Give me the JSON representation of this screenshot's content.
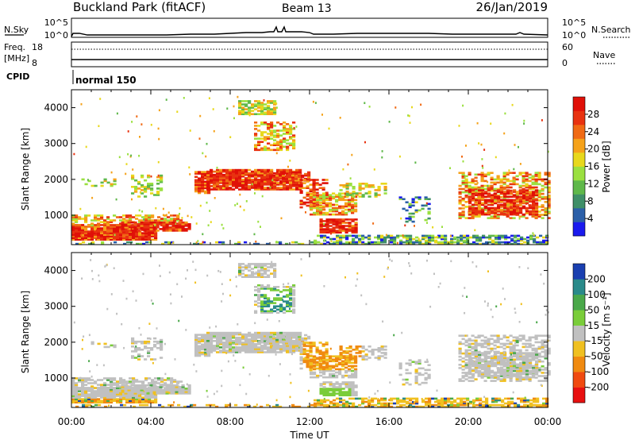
{
  "header": {
    "station": "Buckland Park (fitACF)",
    "beam": "Beam 13",
    "date": "26/Jan/2019"
  },
  "top_panels": {
    "left_label_1": "N.Sky",
    "left_label_2": "Freq.",
    "left_label_3": "[MHz]",
    "left_label_4": "CPID",
    "right_label_1": "N.Search",
    "right_label_2": "Nave",
    "noise_ticks": [
      "10^5",
      "10^0"
    ],
    "freq_ticks": [
      "18",
      "8"
    ],
    "nave_ticks": [
      "60",
      "0"
    ],
    "cpid_text": "normal 150"
  },
  "chart_data": [
    {
      "type": "heatmap",
      "title": "",
      "xlabel": "",
      "ylabel": "Slant Range [km]",
      "ylim": [
        180,
        4500
      ],
      "xlim": [
        0,
        24
      ],
      "y_ticks": [
        "1000",
        "2000",
        "3000",
        "4000"
      ],
      "colorbar": {
        "label": "Power [dB]",
        "range": [
          0,
          32
        ],
        "ticks": [
          "4",
          "8",
          "12",
          "16",
          "20",
          "24",
          "28"
        ],
        "colors": [
          "#1a1aee",
          "#2b5fa8",
          "#3f8f68",
          "#5fb84a",
          "#9be040",
          "#e8d81c",
          "#f5a21a",
          "#f06a14",
          "#e83210",
          "#e01008"
        ]
      }
    },
    {
      "type": "heatmap",
      "title": "",
      "xlabel": "Time UT",
      "ylabel": "Slant Range [km]",
      "ylim": [
        180,
        4500
      ],
      "xlim": [
        0,
        24
      ],
      "y_ticks": [
        "1000",
        "2000",
        "3000",
        "4000"
      ],
      "x_ticks": [
        "00:00",
        "04:00",
        "08:00",
        "12:00",
        "16:00",
        "20:00",
        "00:00"
      ],
      "colorbar": {
        "label": "Velocity [m s⁻¹]",
        "ticks": [
          "200",
          "100",
          "50",
          "15",
          "-15",
          "-50",
          "-100",
          "-200"
        ],
        "colors": [
          "#1a3fb0",
          "#2a8a8a",
          "#4aa84a",
          "#7acd3a",
          "#c0c0c0",
          "#f0c020",
          "#f08a10",
          "#f04a10",
          "#e81010"
        ]
      }
    }
  ]
}
